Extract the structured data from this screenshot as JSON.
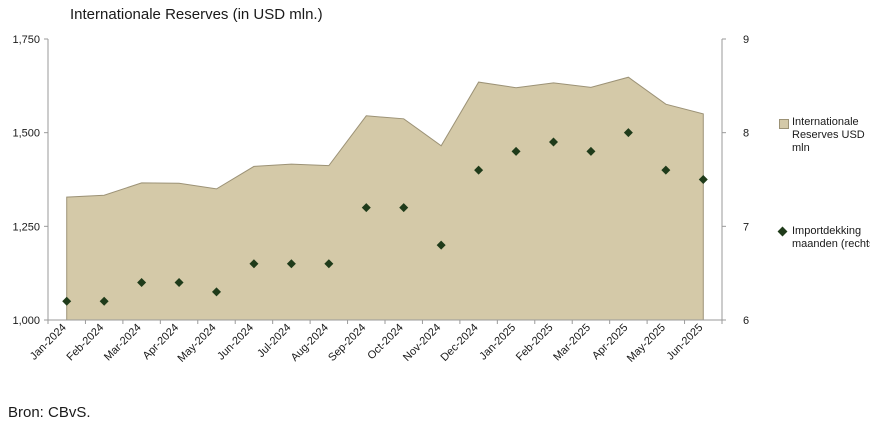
{
  "title": "Internationale Reserves (in USD mln.)",
  "source": "Bron: CBvS.",
  "colors": {
    "area_fill": "#d4c9a8",
    "area_stroke": "#9c9276",
    "diamond": "#1f3b1a",
    "axis": "#9a9a9a"
  },
  "chart_data": {
    "type": "area",
    "categories": [
      "Jan-2024",
      "Feb-2024",
      "Mar-2024",
      "Apr-2024",
      "May-2024",
      "Jun-2024",
      "Jul-2024",
      "Aug-2024",
      "Sep-2024",
      "Oct-2024",
      "Nov-2024",
      "Dec-2024",
      "Jan-2025",
      "Feb-2025",
      "Mar-2025",
      "Apr-2025",
      "May-2025",
      "Jun-2025"
    ],
    "series": [
      {
        "name": "Internationale Reserves USD mln",
        "type": "area",
        "axis": "left",
        "values": [
          1328,
          1333,
          1366,
          1365,
          1350,
          1410,
          1416,
          1412,
          1545,
          1537,
          1465,
          1635,
          1620,
          1633,
          1621,
          1648,
          1576,
          1550
        ]
      },
      {
        "name": "Importdekking maanden (rechts)",
        "type": "scatter",
        "marker": "diamond",
        "axis": "right",
        "values": [
          6.2,
          6.2,
          6.4,
          6.4,
          6.3,
          6.6,
          6.6,
          6.6,
          7.2,
          7.2,
          6.8,
          7.6,
          7.8,
          7.9,
          7.8,
          8.0,
          7.6,
          7.5
        ]
      }
    ],
    "ylim_left": [
      1000,
      1750
    ],
    "yticks_left": [
      1000,
      1250,
      1500,
      1750
    ],
    "yticklabels_left": [
      "1,000",
      "1,250",
      "1,500",
      "1,750"
    ],
    "ylim_right": [
      6,
      9
    ],
    "yticks_right": [
      6,
      7,
      8,
      9
    ],
    "yticklabels_right": [
      "6",
      "7",
      "8",
      "9"
    ],
    "grid": false,
    "legend_position": "right"
  },
  "legend": {
    "items": [
      {
        "label": "Internationale Reserves USD mln",
        "symbol": "square-icon"
      },
      {
        "label": "Importdekking maanden (rechts)",
        "symbol": "diamond-icon"
      }
    ]
  }
}
